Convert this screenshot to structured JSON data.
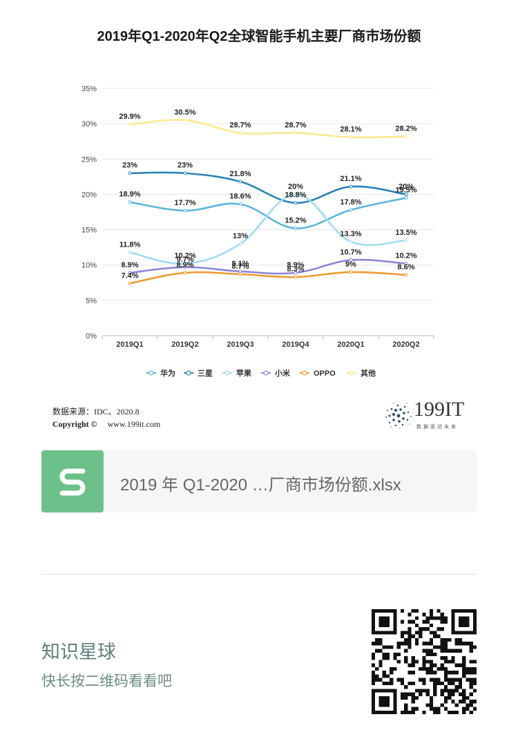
{
  "chart_data": {
    "type": "line",
    "title": "2019年Q1-2020年Q2全球智能手机主要厂商市场份额",
    "categories": [
      "2019Q1",
      "2019Q2",
      "2019Q3",
      "2019Q4",
      "2020Q1",
      "2020Q2"
    ],
    "y_ticks": [
      "0%",
      "5%",
      "10%",
      "15%",
      "20%",
      "25%",
      "30%",
      "35%"
    ],
    "ylim": [
      0,
      35
    ],
    "grid": true,
    "legend_position": "bottom",
    "series": [
      {
        "name": "华为",
        "color": "#5bb4dc",
        "values": [
          18.9,
          17.7,
          18.6,
          15.2,
          17.8,
          19.5
        ],
        "labels": [
          "18.9%",
          "17.7%",
          "18.6%",
          "15.2%",
          "17.8%",
          "19.5%"
        ]
      },
      {
        "name": "三星",
        "color": "#2a82b6",
        "values": [
          23,
          23,
          21.8,
          18.8,
          21.1,
          20
        ],
        "labels": [
          "23%",
          "23%",
          "21.8%",
          "18.8%",
          "21.1%",
          "20%"
        ]
      },
      {
        "name": "苹果",
        "color": "#9fdcf2",
        "values": [
          11.8,
          10.2,
          13,
          20,
          13.3,
          13.5
        ],
        "labels": [
          "11.8%",
          "10.2%",
          "13%",
          "20%",
          "13.3%",
          "13.5%"
        ]
      },
      {
        "name": "小米",
        "color": "#8a86d8",
        "values": [
          8.9,
          9.7,
          9.1,
          8.9,
          10.7,
          10.2
        ],
        "labels": [
          "8.9%",
          "9.7%",
          "9.1%",
          "8.9%",
          "10.7%",
          "10.2%"
        ]
      },
      {
        "name": "OPPO",
        "color": "#ee9a2f",
        "values": [
          7.4,
          8.9,
          8.7,
          8.3,
          9,
          8.6
        ],
        "labels": [
          "7.4%",
          "8.9%",
          "8.7%",
          "8.3%",
          "9%",
          "8.6%"
        ]
      },
      {
        "name": "其他",
        "color": "#fbe88f",
        "values": [
          29.9,
          30.5,
          28.7,
          28.7,
          28.1,
          28.2
        ],
        "labels": [
          "29.9%",
          "30.5%",
          "28.7%",
          "28.7%",
          "28.1%",
          "28.2%"
        ]
      }
    ]
  },
  "footer": {
    "source": "数据来源：IDC、2020.8",
    "copyright_label": "Copyright ©",
    "copyright_site": "www.199it.com",
    "logo_text": "199IT",
    "logo_tagline": "数据驱动未来"
  },
  "file_card": {
    "icon_letter": "S",
    "file_name": "2019 年 Q1-2020 …厂商市场份额.xlsx"
  },
  "planet": {
    "title": "知识星球",
    "subtitle": "快长按二维码看看吧"
  },
  "icons": {
    "file_icon": "spreadsheet-s-icon",
    "logo_icon": "dot-burst-logo-icon",
    "qr": "qr-code-icon"
  }
}
